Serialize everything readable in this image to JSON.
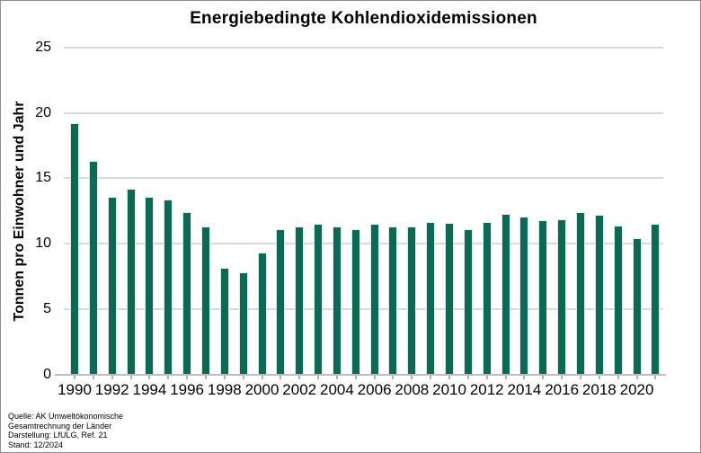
{
  "title": "Energiebedingte Kohlendioxidemissionen",
  "y_axis": {
    "label": "Tonnen pro Einwohner und Jahr",
    "tick_labels": [
      "0",
      "5",
      "10",
      "15",
      "20",
      "25"
    ]
  },
  "x_axis": {
    "tick_labels": [
      "1990",
      "1992",
      "1994",
      "1996",
      "1998",
      "2000",
      "2002",
      "2004",
      "2006",
      "2008",
      "2010",
      "2012",
      "2014",
      "2016",
      "2018",
      "2020"
    ]
  },
  "source": {
    "lines": [
      "Quelle: AK Umweltökonomische",
      "Gesamtrechnung der Länder",
      "Darstellung: LfULG, Ref. 21",
      "Stand: 12/2024"
    ]
  },
  "colors": {
    "bar": "#0b6a56",
    "gridline": "#d9d9d9",
    "baseline": "#bdbdbd",
    "frame_border": "#8f8f8f",
    "text": "#000000",
    "background": "#ffffff"
  },
  "chart_data": {
    "type": "bar",
    "title": "Energiebedingte Kohlendioxidemissionen",
    "xlabel": "",
    "ylabel": "Tonnen pro Einwohner und Jahr",
    "ylim": [
      0,
      25
    ],
    "ytick_interval": 5,
    "grid": true,
    "legend": false,
    "x_label_every": 2,
    "bar_color": "#0b6a56",
    "categories": [
      1990,
      1991,
      1992,
      1993,
      1994,
      1995,
      1996,
      1997,
      1998,
      1999,
      2000,
      2001,
      2002,
      2003,
      2004,
      2005,
      2006,
      2007,
      2008,
      2009,
      2010,
      2011,
      2012,
      2013,
      2014,
      2015,
      2016,
      2017,
      2018,
      2019,
      2020,
      2021
    ],
    "values": [
      19.2,
      16.3,
      13.6,
      14.2,
      13.6,
      13.4,
      12.4,
      11.3,
      8.2,
      7.8,
      9.3,
      11.1,
      11.3,
      11.5,
      11.3,
      11.1,
      11.5,
      11.3,
      11.3,
      11.7,
      11.6,
      11.1,
      11.7,
      12.3,
      12.1,
      11.8,
      11.9,
      12.4,
      12.2,
      11.4,
      10.4,
      11.5
    ]
  }
}
